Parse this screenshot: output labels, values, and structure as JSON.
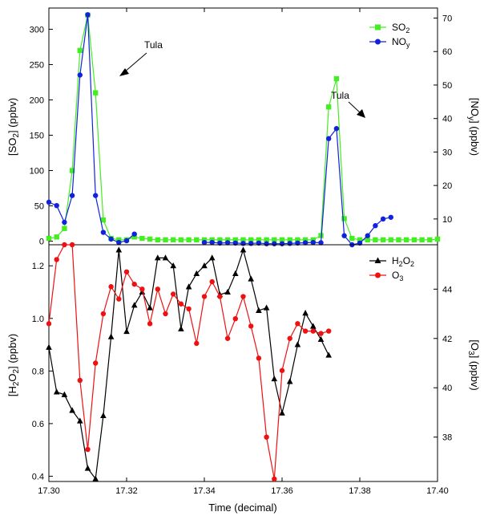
{
  "chart_data": [
    {
      "type": "line",
      "panel": "top",
      "xlim": [
        17.3,
        17.4
      ],
      "y_left": {
        "label": "[SO2] (ppbv)",
        "lim": [
          -5,
          330
        ],
        "ticks": [
          0,
          50,
          100,
          150,
          200,
          250,
          300
        ]
      },
      "y_right": {
        "label": "[NOy] (ppbv)",
        "lim": [
          2.3,
          73
        ],
        "ticks": [
          10,
          20,
          30,
          40,
          50,
          60,
          70
        ]
      },
      "legend_position": "top-right",
      "series": [
        {
          "name": "SO2",
          "axis": "left",
          "color": "#44ee22",
          "marker": "square",
          "points": [
            [
              17.3,
              4
            ],
            [
              17.302,
              6
            ],
            [
              17.304,
              18
            ],
            [
              17.306,
              100
            ],
            [
              17.308,
              270
            ],
            [
              17.31,
              320
            ],
            [
              17.312,
              210
            ],
            [
              17.314,
              30
            ],
            [
              17.316,
              4
            ],
            [
              17.318,
              2
            ],
            [
              17.32,
              2
            ],
            [
              17.322,
              6
            ],
            [
              17.324,
              4
            ],
            [
              17.326,
              3
            ],
            [
              17.328,
              2
            ],
            [
              17.33,
              2
            ],
            [
              17.332,
              2
            ],
            [
              17.334,
              2
            ],
            [
              17.336,
              2
            ],
            [
              17.338,
              2
            ],
            [
              17.34,
              2
            ],
            [
              17.342,
              2
            ],
            [
              17.344,
              2
            ],
            [
              17.346,
              2
            ],
            [
              17.348,
              2
            ],
            [
              17.35,
              2
            ],
            [
              17.352,
              2
            ],
            [
              17.354,
              2
            ],
            [
              17.356,
              2
            ],
            [
              17.358,
              2
            ],
            [
              17.36,
              2
            ],
            [
              17.362,
              2
            ],
            [
              17.364,
              2
            ],
            [
              17.366,
              2
            ],
            [
              17.368,
              2
            ],
            [
              17.37,
              8
            ],
            [
              17.372,
              190
            ],
            [
              17.374,
              230
            ],
            [
              17.376,
              32
            ],
            [
              17.378,
              4
            ],
            [
              17.38,
              2
            ],
            [
              17.382,
              2
            ],
            [
              17.384,
              2
            ],
            [
              17.386,
              2
            ],
            [
              17.388,
              2
            ],
            [
              17.39,
              2
            ],
            [
              17.392,
              2
            ],
            [
              17.394,
              2
            ],
            [
              17.396,
              2
            ],
            [
              17.398,
              2
            ],
            [
              17.4,
              3
            ]
          ]
        },
        {
          "name": "NOy",
          "axis": "right",
          "color": "#1122dd",
          "marker": "circle",
          "segments": [
            [
              [
                17.3,
                15
              ],
              [
                17.302,
                14
              ],
              [
                17.304,
                9
              ],
              [
                17.306,
                17
              ],
              [
                17.308,
                53
              ],
              [
                17.31,
                71
              ],
              [
                17.312,
                17
              ],
              [
                17.314,
                6
              ],
              [
                17.316,
                4
              ],
              [
                17.318,
                3
              ],
              [
                17.32,
                3.5
              ],
              [
                17.322,
                5.5
              ]
            ],
            [
              [
                17.34,
                3
              ],
              [
                17.342,
                3
              ],
              [
                17.344,
                2.8
              ],
              [
                17.346,
                2.9
              ],
              [
                17.348,
                2.8
              ],
              [
                17.35,
                2.7
              ],
              [
                17.352,
                2.7
              ],
              [
                17.354,
                2.8
              ],
              [
                17.356,
                2.6
              ],
              [
                17.358,
                2.6
              ],
              [
                17.36,
                2.6
              ],
              [
                17.362,
                2.7
              ],
              [
                17.364,
                2.8
              ],
              [
                17.366,
                2.9
              ],
              [
                17.368,
                3
              ],
              [
                17.37,
                2.9
              ],
              [
                17.372,
                34
              ],
              [
                17.374,
                37
              ],
              [
                17.376,
                5
              ],
              [
                17.378,
                2.3
              ],
              [
                17.38,
                2.8
              ],
              [
                17.382,
                5
              ],
              [
                17.384,
                8
              ],
              [
                17.386,
                10
              ],
              [
                17.388,
                10.5
              ]
            ]
          ]
        }
      ],
      "annotations": [
        {
          "text": "Tula",
          "points_to": [
            17.313,
            200
          ]
        },
        {
          "text": "Tula",
          "points_to": [
            17.3715,
            190
          ]
        }
      ]
    },
    {
      "type": "line",
      "panel": "bottom",
      "xlim": [
        17.3,
        17.4
      ],
      "x_ticks": [
        "17.30",
        "17.32",
        "17.34",
        "17.36",
        "17.38",
        "17.40"
      ],
      "xlabel": "Time (decimal)",
      "y_left": {
        "label": "[H2O2] (ppbv)",
        "lim": [
          0.38,
          1.28
        ],
        "ticks": [
          "0.4",
          "0.6",
          "0.8",
          "1.0",
          "1.2"
        ]
      },
      "y_right": {
        "label": "[O3] (ppbv)",
        "lim": [
          36.2,
          45.8
        ],
        "ticks": [
          38,
          40,
          42,
          44
        ]
      },
      "legend_position": "top-right",
      "series": [
        {
          "name": "H2O2",
          "axis": "left",
          "color": "#000000",
          "marker": "triangle",
          "points": [
            [
              17.3,
              0.89
            ],
            [
              17.302,
              0.72
            ],
            [
              17.304,
              0.71
            ],
            [
              17.306,
              0.65
            ],
            [
              17.308,
              0.61
            ],
            [
              17.31,
              0.43
            ],
            [
              17.312,
              0.39
            ],
            [
              17.314,
              0.63
            ],
            [
              17.316,
              0.93
            ],
            [
              17.318,
              1.26
            ],
            [
              17.32,
              0.95
            ],
            [
              17.322,
              1.05
            ],
            [
              17.324,
              1.1
            ],
            [
              17.326,
              1.04
            ],
            [
              17.328,
              1.23
            ],
            [
              17.33,
              1.23
            ],
            [
              17.332,
              1.2
            ],
            [
              17.334,
              0.96
            ],
            [
              17.336,
              1.12
            ],
            [
              17.338,
              1.17
            ],
            [
              17.34,
              1.2
            ],
            [
              17.342,
              1.23
            ],
            [
              17.344,
              1.09
            ],
            [
              17.346,
              1.1
            ],
            [
              17.348,
              1.17
            ],
            [
              17.35,
              1.26
            ],
            [
              17.352,
              1.15
            ],
            [
              17.354,
              1.03
            ],
            [
              17.356,
              1.04
            ],
            [
              17.358,
              0.77
            ],
            [
              17.36,
              0.64
            ],
            [
              17.362,
              0.76
            ],
            [
              17.364,
              0.9
            ],
            [
              17.366,
              1.02
            ],
            [
              17.368,
              0.97
            ],
            [
              17.37,
              0.92
            ],
            [
              17.372,
              0.86
            ]
          ]
        },
        {
          "name": "O3",
          "axis": "right",
          "color": "#ee1111",
          "marker": "circle",
          "points": [
            [
              17.3,
              42.6
            ],
            [
              17.302,
              45.2
            ],
            [
              17.304,
              45.8
            ],
            [
              17.306,
              45.8
            ],
            [
              17.308,
              40.3
            ],
            [
              17.31,
              37.5
            ],
            [
              17.312,
              41.0
            ],
            [
              17.314,
              43.0
            ],
            [
              17.316,
              44.1
            ],
            [
              17.318,
              43.6
            ],
            [
              17.32,
              44.7
            ],
            [
              17.322,
              44.2
            ],
            [
              17.324,
              44.0
            ],
            [
              17.326,
              42.6
            ],
            [
              17.328,
              44.0
            ],
            [
              17.33,
              43.0
            ],
            [
              17.332,
              43.8
            ],
            [
              17.334,
              43.4
            ],
            [
              17.336,
              43.2
            ],
            [
              17.338,
              41.8
            ],
            [
              17.34,
              43.7
            ],
            [
              17.342,
              44.3
            ],
            [
              17.344,
              43.7
            ],
            [
              17.346,
              42.0
            ],
            [
              17.348,
              42.8
            ],
            [
              17.35,
              43.7
            ],
            [
              17.352,
              42.5
            ],
            [
              17.354,
              41.2
            ],
            [
              17.356,
              38.0
            ],
            [
              17.358,
              36.3
            ],
            [
              17.36,
              40.7
            ],
            [
              17.362,
              42.0
            ],
            [
              17.364,
              42.6
            ],
            [
              17.366,
              42.3
            ],
            [
              17.368,
              42.3
            ],
            [
              17.37,
              42.2
            ],
            [
              17.372,
              42.3
            ]
          ]
        }
      ]
    }
  ],
  "labels": {
    "top_ylabel_left": {
      "pre": "[SO",
      "sub": "2",
      "post": "] (ppbv)"
    },
    "top_ylabel_right": {
      "pre": "[NO",
      "sub": "y",
      "post": "] (ppbv)"
    },
    "bottom_ylabel_left": {
      "pre": "[H",
      "sub": "2",
      "mid": "O",
      "sub2": "2",
      "post": "] (ppbv)"
    },
    "bottom_ylabel_right": {
      "pre": "[O",
      "sub": "3",
      "post": "] (ppbv)"
    },
    "xlabel": "Time (decimal)",
    "legend_so2": {
      "pre": "SO",
      "sub": "2"
    },
    "legend_noy": {
      "pre": "NO",
      "sub": "y"
    },
    "legend_h2o2": {
      "pre": "H",
      "sub": "2",
      "mid": "O",
      "sub2": "2"
    },
    "legend_o3": {
      "pre": "O",
      "sub": "3"
    },
    "tula": "Tula"
  },
  "colors": {
    "so2": "#44ee22",
    "noy": "#1122dd",
    "h2o2": "#000000",
    "o3": "#ee1111"
  }
}
